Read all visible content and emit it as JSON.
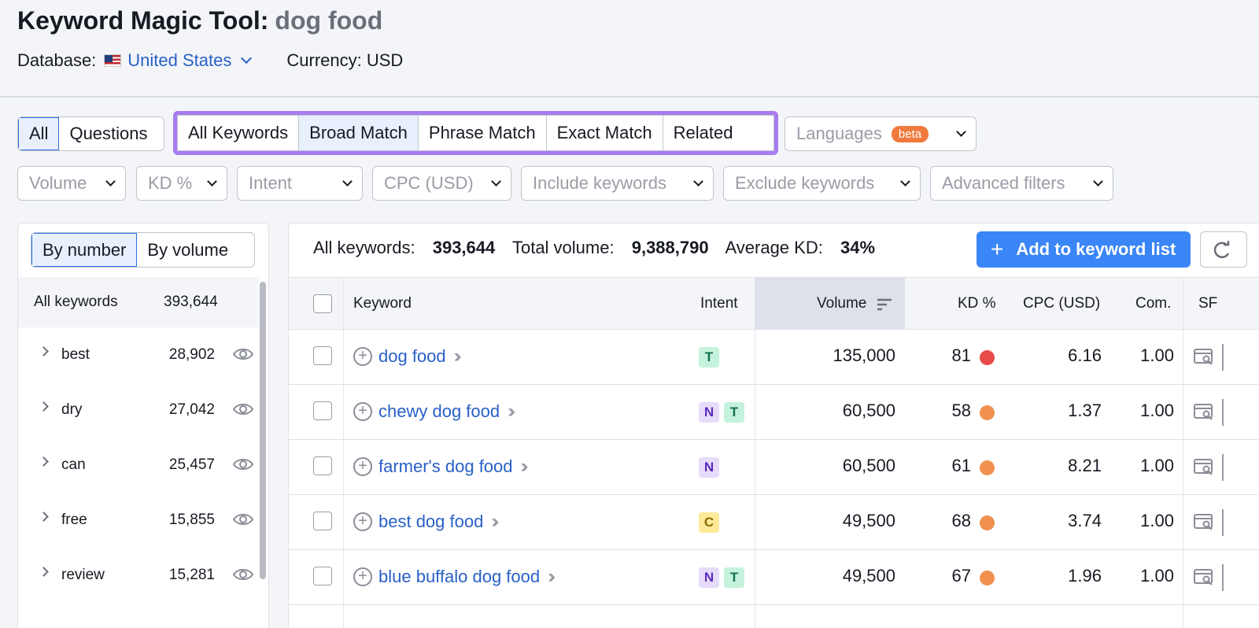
{
  "header": {
    "title": "Keyword Magic Tool:",
    "query": "dog food",
    "database_label": "Database:",
    "database_value": "United States",
    "currency": "Currency: USD"
  },
  "question_filter": {
    "all": "All",
    "questions": "Questions",
    "selected": "All"
  },
  "match_tabs": {
    "items": [
      "All Keywords",
      "Broad Match",
      "Phrase Match",
      "Exact Match",
      "Related"
    ],
    "selected": "Broad Match",
    "highlight_color": "#a77cf0"
  },
  "languages": {
    "label": "Languages",
    "badge": "beta"
  },
  "filters": [
    "Volume",
    "KD %",
    "Intent",
    "CPC (USD)",
    "Include keywords",
    "Exclude keywords",
    "Advanced filters"
  ],
  "groups": {
    "toggle": [
      "By number",
      "By volume"
    ],
    "selected": "By number",
    "all_label": "All keywords",
    "all_count": "393,644",
    "items": [
      {
        "word": "best",
        "count": "28,902"
      },
      {
        "word": "dry",
        "count": "27,042"
      },
      {
        "word": "can",
        "count": "25,457"
      },
      {
        "word": "free",
        "count": "15,855"
      },
      {
        "word": "review",
        "count": "15,281"
      }
    ]
  },
  "summary": {
    "all_keywords_label": "All keywords:",
    "all_keywords_value": "393,644",
    "total_volume_label": "Total volume:",
    "total_volume_value": "9,388,790",
    "avg_kd_label": "Average KD:",
    "avg_kd_value": "34%"
  },
  "add_button": "Add to keyword list",
  "table": {
    "columns": [
      "Keyword",
      "Intent",
      "Volume",
      "KD %",
      "CPC (USD)",
      "Com.",
      "SF"
    ],
    "sorted_by": "Volume",
    "rows": [
      {
        "keyword": "dog food",
        "intents": [
          "T"
        ],
        "volume": "135,000",
        "kd": "81",
        "kd_color": "#e84a4a",
        "cpc": "6.16",
        "com": "1.00"
      },
      {
        "keyword": "chewy dog food",
        "intents": [
          "N",
          "T"
        ],
        "volume": "60,500",
        "kd": "58",
        "kd_color": "#f0914f",
        "cpc": "1.37",
        "com": "1.00"
      },
      {
        "keyword": "farmer's dog food",
        "intents": [
          "N"
        ],
        "volume": "60,500",
        "kd": "61",
        "kd_color": "#f0914f",
        "cpc": "8.21",
        "com": "1.00"
      },
      {
        "keyword": "best dog food",
        "intents": [
          "C"
        ],
        "volume": "49,500",
        "kd": "68",
        "kd_color": "#f0914f",
        "cpc": "3.74",
        "com": "1.00"
      },
      {
        "keyword": "blue buffalo dog food",
        "intents": [
          "N",
          "T"
        ],
        "volume": "49,500",
        "kd": "67",
        "kd_color": "#f0914f",
        "cpc": "1.96",
        "com": "1.00"
      }
    ]
  }
}
